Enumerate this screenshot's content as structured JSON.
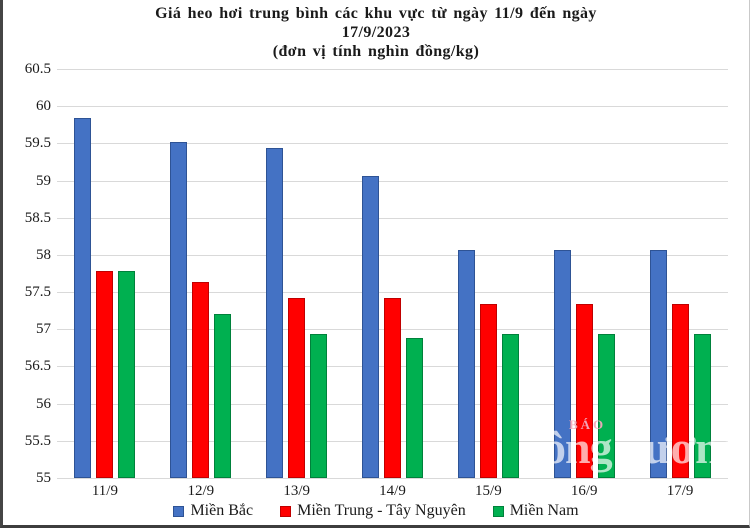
{
  "page": {
    "title_line1": "Giá heo hơi trung bình các khu vực từ ngày 11/9 đến ngày",
    "title_line2": "17/9/2023",
    "title_line3": "(đơn vị tính nghìn đồng/kg)"
  },
  "watermark": {
    "small_text": "BÁO",
    "big_text_left": "ông",
    "big_text_right": "ương"
  },
  "colors": {
    "gridline": "#D9D9D9",
    "text": "#1A1A1A"
  },
  "chart_data": {
    "type": "bar",
    "title": "Giá heo hơi trung bình các khu vực từ ngày 11/9 đến ngày 17/9/2023 (đơn vị tính nghìn đồng/kg)",
    "unit": "nghìn đồng/kg",
    "categories": [
      "11/9",
      "12/9",
      "13/9",
      "14/9",
      "15/9",
      "16/9",
      "17/9"
    ],
    "series": [
      {
        "name": "Miền Bắc",
        "color": "#4472C4",
        "border_color": "#2E5395",
        "values": [
          59.84,
          59.52,
          59.44,
          59.06,
          58.06,
          58.06,
          58.06
        ]
      },
      {
        "name": "Miền Trung - Tây Nguyên",
        "color": "#FF0000",
        "border_color": "#C00000",
        "values": [
          57.79,
          57.64,
          57.42,
          57.42,
          57.34,
          57.34,
          57.34
        ]
      },
      {
        "name": "Miền Nam",
        "color": "#00B050",
        "border_color": "#00813B",
        "values": [
          57.79,
          57.2,
          56.93,
          56.88,
          56.93,
          56.93,
          56.93
        ]
      }
    ],
    "ylim": [
      55,
      60.5
    ],
    "ytick_step": 0.5,
    "yticks": [
      "60.5",
      "60",
      "59.5",
      "59",
      "58.5",
      "58",
      "57.5",
      "57",
      "56.5",
      "56",
      "55.5",
      "55"
    ],
    "grid": true,
    "legend_position": "bottom"
  }
}
